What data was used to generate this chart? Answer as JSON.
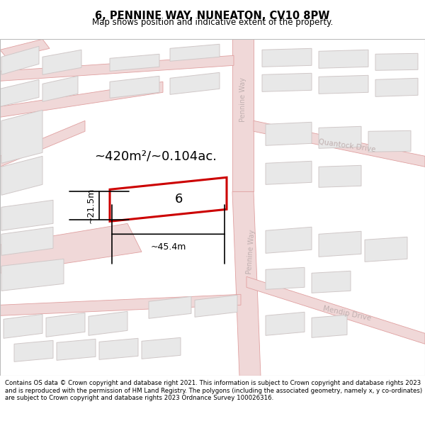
{
  "title": "6, PENNINE WAY, NUNEATON, CV10 8PW",
  "subtitle": "Map shows position and indicative extent of the property.",
  "footer": "Contains OS data © Crown copyright and database right 2021. This information is subject to Crown copyright and database rights 2023 and is reproduced with the permission of HM Land Registry. The polygons (including the associated geometry, namely x, y co-ordinates) are subject to Crown copyright and database rights 2023 Ordnance Survey 100026316.",
  "area_text": "~420m²/~0.104ac.",
  "width_text": "~45.4m",
  "height_text": "~21.5m",
  "plot_label": "6",
  "road_fill": "#f0d8d8",
  "road_edge": "#e0a0a0",
  "building_fill": "#e8e8e8",
  "building_edge": "#d0c8c8",
  "map_bg": "#fafafa",
  "highlight_color": "#cc0000",
  "street_color": "#c0b0b0",
  "figsize": [
    6.0,
    6.25
  ],
  "dpi": 100
}
